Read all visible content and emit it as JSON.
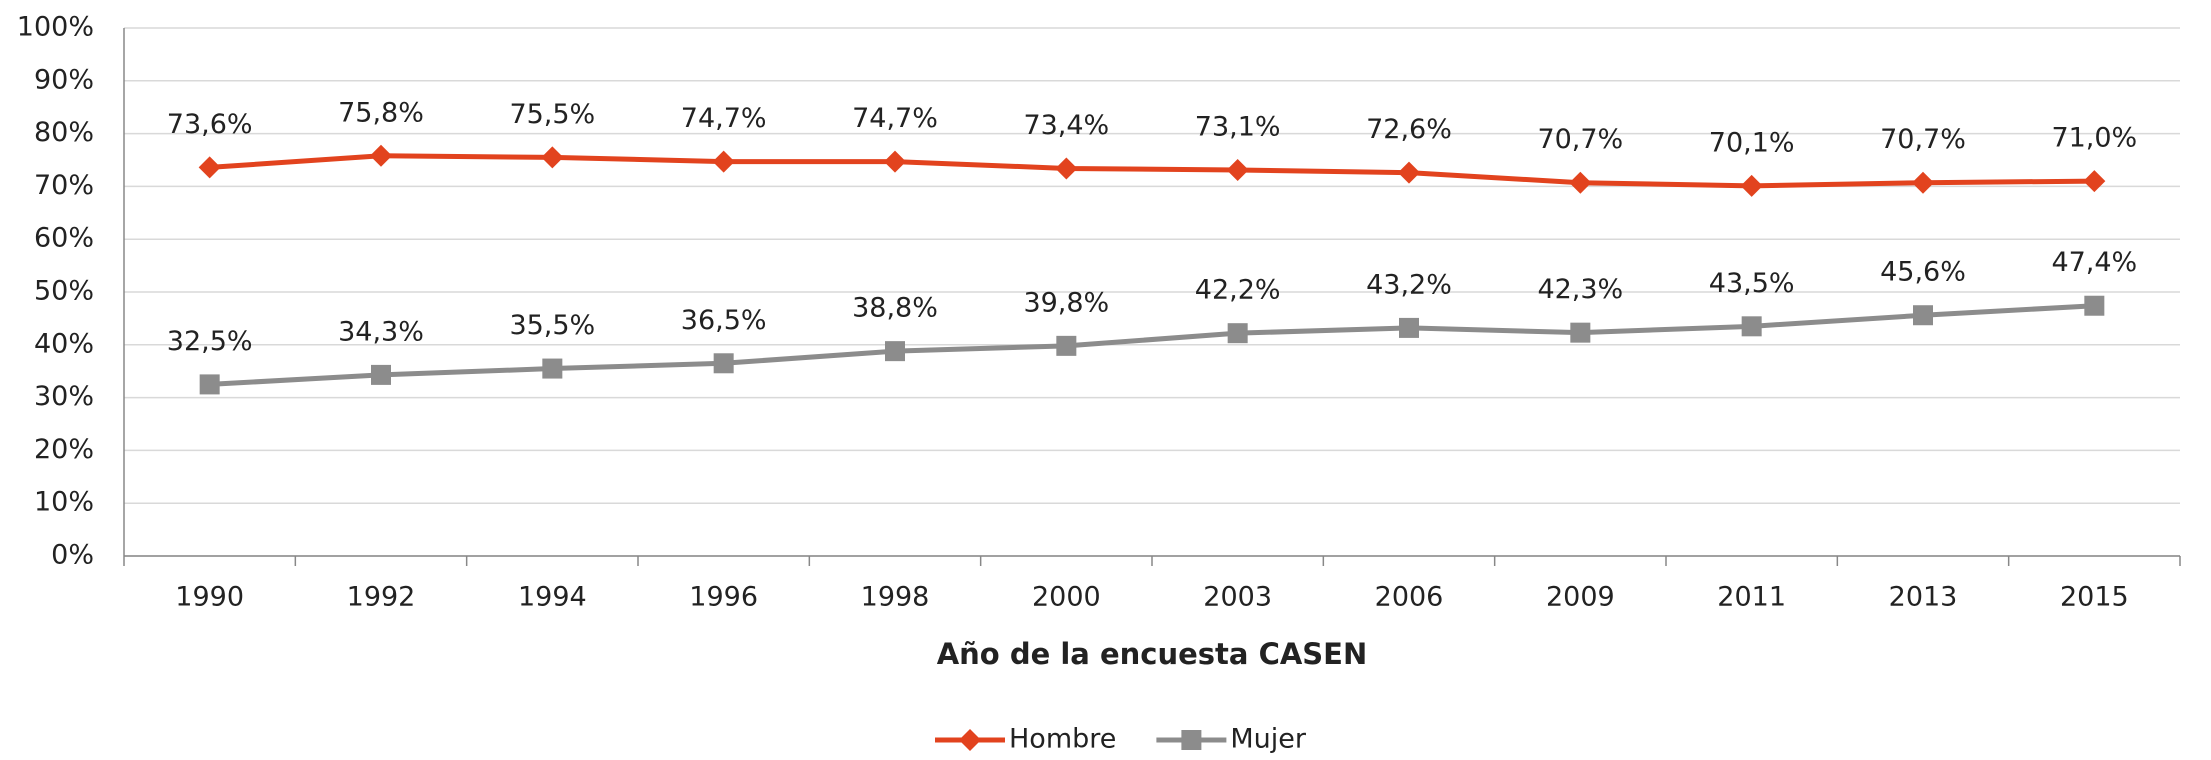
{
  "chart_data": {
    "type": "line",
    "x_label": "Año de la encuesta CASEN",
    "categories": [
      "1990",
      "1992",
      "1994",
      "1996",
      "1998",
      "2000",
      "2003",
      "2006",
      "2009",
      "2011",
      "2013",
      "2015"
    ],
    "series": [
      {
        "name": "Hombre",
        "color": "#e2431e",
        "marker": "diamond",
        "values": [
          73.6,
          75.8,
          75.5,
          74.7,
          74.7,
          73.4,
          73.1,
          72.6,
          70.7,
          70.1,
          70.7,
          71.0
        ],
        "value_labels": [
          "73,6%",
          "75,8%",
          "75,5%",
          "74,7%",
          "74,7%",
          "73,4%",
          "73,1%",
          "72,6%",
          "70,7%",
          "70,1%",
          "70,7%",
          "71,0%"
        ]
      },
      {
        "name": "Mujer",
        "color": "#8c8c8c",
        "marker": "square",
        "values": [
          32.5,
          34.3,
          35.5,
          36.5,
          38.8,
          39.8,
          42.2,
          43.2,
          42.3,
          43.5,
          45.6,
          47.4
        ],
        "value_labels": [
          "32,5%",
          "34,3%",
          "35,5%",
          "36,5%",
          "38,8%",
          "39,8%",
          "42,2%",
          "43,2%",
          "42,3%",
          "43,5%",
          "45,6%",
          "47,4%"
        ]
      }
    ],
    "ylim": [
      0,
      100
    ],
    "yticks": [
      {
        "value": 0,
        "label": "0%"
      },
      {
        "value": 10,
        "label": "10%"
      },
      {
        "value": 20,
        "label": "20%"
      },
      {
        "value": 30,
        "label": "30%"
      },
      {
        "value": 40,
        "label": "40%"
      },
      {
        "value": 50,
        "label": "50%"
      },
      {
        "value": 60,
        "label": "60%"
      },
      {
        "value": 70,
        "label": "70%"
      },
      {
        "value": 80,
        "label": "80%"
      },
      {
        "value": 90,
        "label": "90%"
      },
      {
        "value": 100,
        "label": "100%"
      }
    ],
    "grid": true,
    "legend": "bottom"
  }
}
